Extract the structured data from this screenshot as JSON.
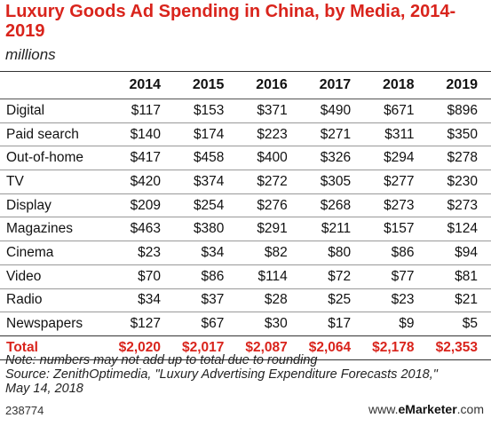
{
  "chart_data": {
    "type": "table",
    "title": "Luxury Goods Ad Spending in China, by Media, 2014-2019",
    "subtitle": "millions",
    "columns": [
      "2014",
      "2015",
      "2016",
      "2017",
      "2018",
      "2019"
    ],
    "rows": [
      {
        "label": "Digital",
        "values": [
          "$117",
          "$153",
          "$371",
          "$490",
          "$671",
          "$896"
        ]
      },
      {
        "label": "Paid search",
        "values": [
          "$140",
          "$174",
          "$223",
          "$271",
          "$311",
          "$350"
        ]
      },
      {
        "label": "Out-of-home",
        "values": [
          "$417",
          "$458",
          "$400",
          "$326",
          "$294",
          "$278"
        ]
      },
      {
        "label": "TV",
        "values": [
          "$420",
          "$374",
          "$272",
          "$305",
          "$277",
          "$230"
        ]
      },
      {
        "label": "Display",
        "values": [
          "$209",
          "$254",
          "$276",
          "$268",
          "$273",
          "$273"
        ]
      },
      {
        "label": "Magazines",
        "values": [
          "$463",
          "$380",
          "$291",
          "$211",
          "$157",
          "$124"
        ]
      },
      {
        "label": "Cinema",
        "values": [
          "$23",
          "$34",
          "$82",
          "$80",
          "$86",
          "$94"
        ]
      },
      {
        "label": "Video",
        "values": [
          "$70",
          "$86",
          "$114",
          "$72",
          "$77",
          "$81"
        ]
      },
      {
        "label": "Radio",
        "values": [
          "$34",
          "$37",
          "$28",
          "$25",
          "$23",
          "$21"
        ]
      },
      {
        "label": "Newspapers",
        "values": [
          "$127",
          "$67",
          "$30",
          "$17",
          "$9",
          "$5"
        ]
      }
    ],
    "total": {
      "label": "Total",
      "values": [
        "$2,020",
        "$2,017",
        "$2,087",
        "$2,064",
        "$2,178",
        "$2,353"
      ]
    }
  },
  "footer": {
    "note": "Note: numbers may not add up to total due to rounding",
    "source": "Source: ZenithOptimedia, \"Luxury Advertising Expenditure Forecasts 2018,\"",
    "source_date": "May 14, 2018",
    "chart_id": "238774",
    "brand_prefix": "www.",
    "brand_name": "eMarketer",
    "brand_suffix": ".com"
  },
  "colors": {
    "accent": "#d9241c"
  }
}
